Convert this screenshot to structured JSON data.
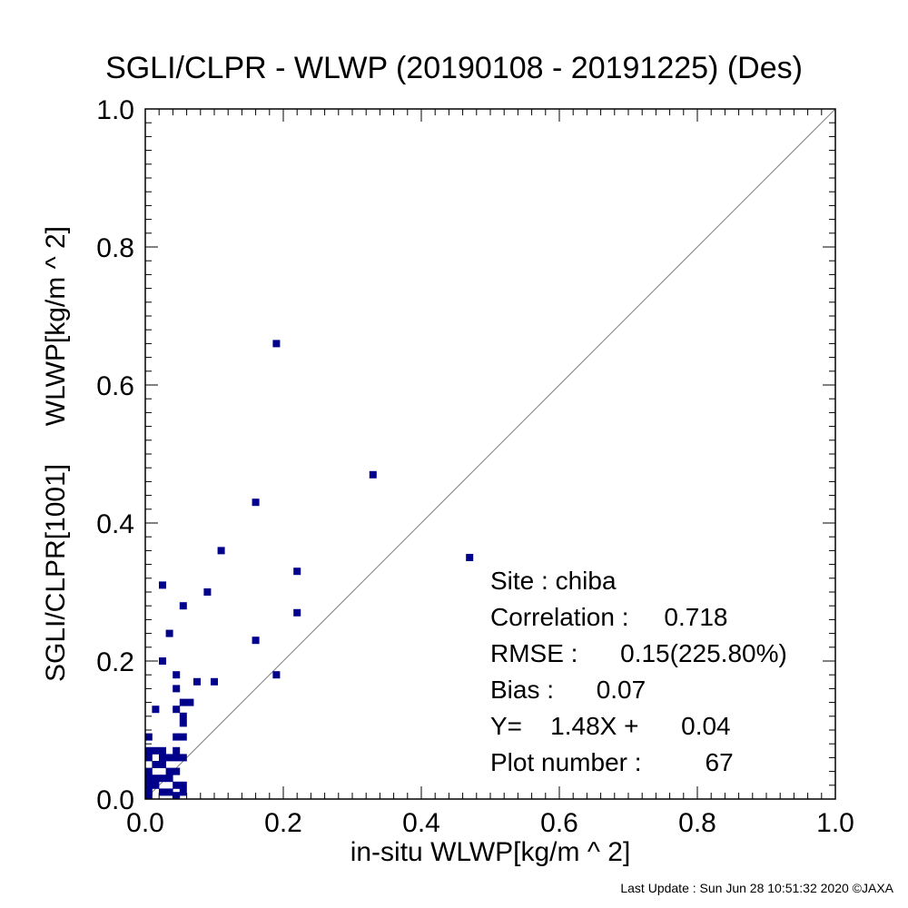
{
  "title": "SGLI/CLPR - WLWP (20190108 - 20191225) (Des)",
  "footer": "Last Update : Sun Jun 28 10:51:32 2020  ©JAXA",
  "stats": {
    "site": "Site : chiba",
    "correlation": "Correlation :     0.718",
    "rmse": "RMSE :      0.15(225.80%)",
    "bias": "Bias :      0.07",
    "regression": "Y=    1.48X +      0.04",
    "plot_number": "Plot number :         67"
  },
  "colors": {
    "points": "#00008b",
    "one_to_one": "#808080",
    "axes": "#000000"
  },
  "chart_data": {
    "type": "scatter",
    "title": "SGLI/CLPR - WLWP (20190108 - 20191225) (Des)",
    "xlabel": "in-situ WLWP[kg/m ^ 2]",
    "ylabel": "SGLI/CLPR[1001]     WLWP[kg/m ^ 2]",
    "xlim": [
      0.0,
      1.0
    ],
    "ylim": [
      0.0,
      1.0
    ],
    "xticks": [
      "0.0",
      "0.2",
      "0.4",
      "0.6",
      "0.8",
      "1.0"
    ],
    "yticks": [
      "0.0",
      "0.2",
      "0.4",
      "0.6",
      "0.8",
      "1.0"
    ],
    "one_to_one_line": true,
    "grid": false,
    "points": [
      {
        "x": 0.19,
        "y": 0.66
      },
      {
        "x": 0.33,
        "y": 0.47
      },
      {
        "x": 0.47,
        "y": 0.35
      },
      {
        "x": 0.16,
        "y": 0.43
      },
      {
        "x": 0.11,
        "y": 0.36
      },
      {
        "x": 0.22,
        "y": 0.33
      },
      {
        "x": 0.025,
        "y": 0.31
      },
      {
        "x": 0.09,
        "y": 0.3
      },
      {
        "x": 0.055,
        "y": 0.28
      },
      {
        "x": 0.22,
        "y": 0.27
      },
      {
        "x": 0.035,
        "y": 0.24
      },
      {
        "x": 0.16,
        "y": 0.23
      },
      {
        "x": 0.025,
        "y": 0.2
      },
      {
        "x": 0.045,
        "y": 0.18
      },
      {
        "x": 0.19,
        "y": 0.18
      },
      {
        "x": 0.075,
        "y": 0.17
      },
      {
        "x": 0.1,
        "y": 0.17
      },
      {
        "x": 0.045,
        "y": 0.16
      },
      {
        "x": 0.055,
        "y": 0.14
      },
      {
        "x": 0.065,
        "y": 0.14
      },
      {
        "x": 0.015,
        "y": 0.13
      },
      {
        "x": 0.045,
        "y": 0.13
      },
      {
        "x": 0.055,
        "y": 0.12
      },
      {
        "x": 0.055,
        "y": 0.11
      },
      {
        "x": 0.005,
        "y": 0.09
      },
      {
        "x": 0.045,
        "y": 0.09
      },
      {
        "x": 0.055,
        "y": 0.09
      },
      {
        "x": 0.005,
        "y": 0.07
      },
      {
        "x": 0.015,
        "y": 0.07
      },
      {
        "x": 0.025,
        "y": 0.07
      },
      {
        "x": 0.045,
        "y": 0.07
      },
      {
        "x": 0.005,
        "y": 0.06
      },
      {
        "x": 0.025,
        "y": 0.06
      },
      {
        "x": 0.035,
        "y": 0.06
      },
      {
        "x": 0.045,
        "y": 0.06
      },
      {
        "x": 0.055,
        "y": 0.06
      },
      {
        "x": 0.015,
        "y": 0.05
      },
      {
        "x": 0.025,
        "y": 0.05
      },
      {
        "x": 0.005,
        "y": 0.04
      },
      {
        "x": 0.035,
        "y": 0.04
      },
      {
        "x": 0.045,
        "y": 0.04
      },
      {
        "x": 0.005,
        "y": 0.03
      },
      {
        "x": 0.015,
        "y": 0.03
      },
      {
        "x": 0.025,
        "y": 0.03
      },
      {
        "x": 0.035,
        "y": 0.03
      },
      {
        "x": 0.005,
        "y": 0.02
      },
      {
        "x": 0.015,
        "y": 0.02
      },
      {
        "x": 0.045,
        "y": 0.02
      },
      {
        "x": 0.055,
        "y": 0.02
      },
      {
        "x": 0.005,
        "y": 0.01
      },
      {
        "x": 0.025,
        "y": 0.01
      },
      {
        "x": 0.035,
        "y": 0.01
      },
      {
        "x": 0.055,
        "y": 0.01
      },
      {
        "x": 0.005,
        "y": 0.005
      },
      {
        "x": 0.045,
        "y": 0.005
      }
    ]
  }
}
